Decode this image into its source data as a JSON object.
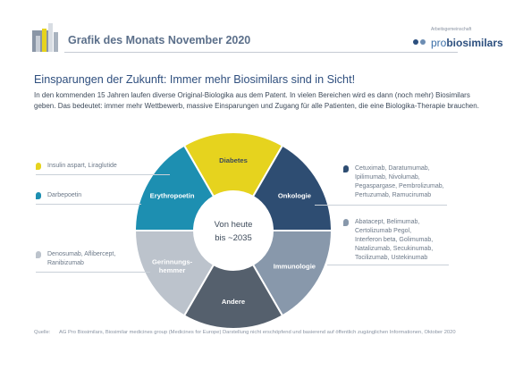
{
  "header": {
    "title": "Grafik des Monats November 2020",
    "brand_tagline": "Arbeitsgemeinschaft",
    "brand_pro": "pro",
    "brand_name": "biosimilars"
  },
  "headline": "Einsparungen der Zukunft: Immer mehr Biosimilars sind in Sicht!",
  "lead": "In den kommenden 15 Jahren laufen diverse Original-Biologika aus dem Patent. In vielen Bereichen wird es dann (noch mehr) Biosimilars geben. Das bedeutet: immer mehr Wettbewerb, massive Einsparungen und Zugang für alle Patienten, die eine Biologika-Therapie brauchen.",
  "wheel": {
    "center_line1": "Von heute",
    "center_line2": "bis ~2035",
    "segments": [
      {
        "label": "Diabetes",
        "color": "#e6d31e",
        "text_color": "#3d4a5a"
      },
      {
        "label": "Onkologie",
        "color": "#2e4d72",
        "text_color": "#ffffff"
      },
      {
        "label": "Immunologie",
        "color": "#8898ab",
        "text_color": "#ffffff"
      },
      {
        "label": "Andere",
        "color": "#55606d",
        "text_color": "#ffffff"
      },
      {
        "label": "Gerinnungs-",
        "label2": "hemmer",
        "color": "#bcc3cc",
        "text_color": "#ffffff"
      },
      {
        "label": "Erythropoetin",
        "color": "#1d8fb1",
        "text_color": "#ffffff"
      }
    ]
  },
  "callouts": {
    "diabetes": {
      "color": "#e6d31e",
      "lines": [
        "Insulin aspart, Liraglutide"
      ]
    },
    "erythropoetin": {
      "color": "#1d8fb1",
      "lines": [
        "Darbepoetin"
      ]
    },
    "gerinnung": {
      "color": "#bcc3cc",
      "lines": [
        "Denosumab, Aflibercept,",
        "Ranibizumab"
      ]
    },
    "onkologie": {
      "color": "#2e4d72",
      "lines": [
        "Cetuximab, Daratumumab,",
        "Ipilimumab, Nivolumab,",
        "Pegaspargase, Pembrolizumab,",
        "Pertuzumab, Ramucirumab"
      ]
    },
    "immunologie": {
      "color": "#8898ab",
      "lines": [
        "Abatacept, Belimumab,",
        "Certolizumab Pegol,",
        "Interferon beta, Golimumab,",
        "Natalizumab, Secukinumab,",
        "Tocilizumab, Ustekinumab"
      ]
    }
  },
  "source": {
    "label": "Quelle:",
    "text": "AG Pro Biosimilars, Biosimilar medicines group (Medicines for Europe) Darstellung nicht erschöpfend und basierend auf öffentlich zugänglichen Informationen, Oktober 2020"
  }
}
